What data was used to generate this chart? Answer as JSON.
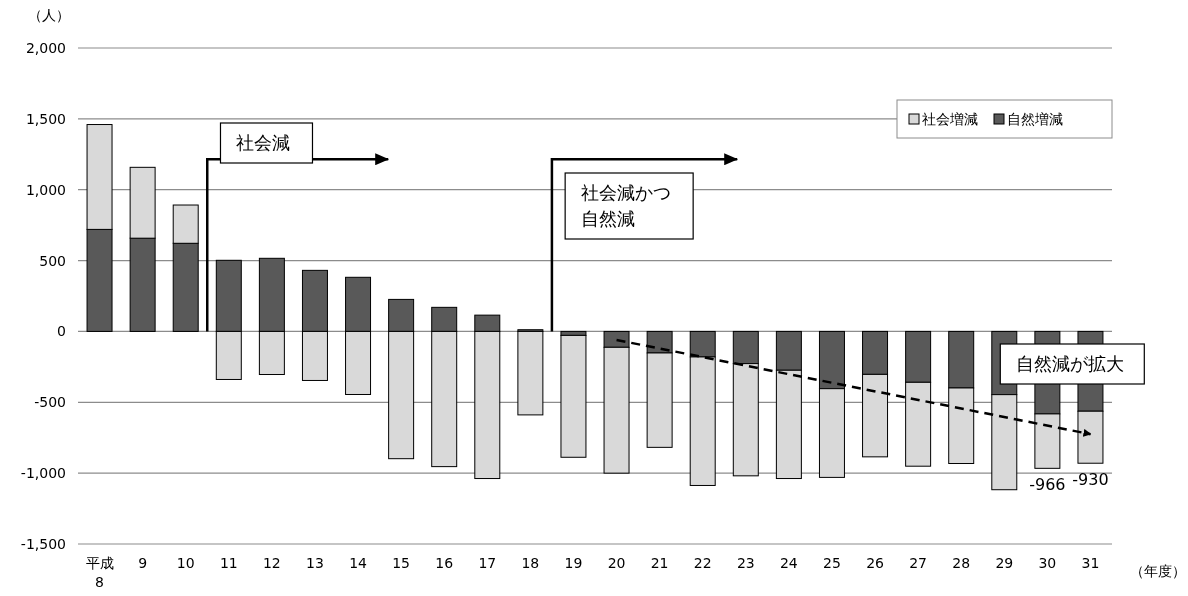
{
  "chart_data": {
    "type": "bar",
    "stacked": true,
    "ylabel": "（人）",
    "xlabel": "（年度）",
    "categories": [
      "平成\n8",
      "9",
      "10",
      "11",
      "12",
      "13",
      "14",
      "15",
      "16",
      "17",
      "18",
      "19",
      "20",
      "21",
      "22",
      "23",
      "24",
      "25",
      "26",
      "27",
      "28",
      "29",
      "30",
      "31"
    ],
    "series": [
      {
        "name": "自然増減",
        "color": "#595959",
        "values": [
          720,
          658,
          622,
          502,
          516,
          431,
          382,
          226,
          170,
          115,
          12,
          -28,
          -112,
          -152,
          -180,
          -227,
          -274,
          -404,
          -303,
          -359,
          -399,
          -446,
          -582,
          -563
        ]
      },
      {
        "name": "社会増減",
        "color": "#d9d9d9",
        "values": [
          740,
          500,
          270,
          -339,
          -304,
          -346,
          -445,
          -898,
          -954,
          -1038,
          -589,
          -860,
          -888,
          -666,
          -907,
          -792,
          -764,
          -626,
          -582,
          -592,
          -533,
          -671,
          -384,
          -367
        ]
      },
      {
        "type": "line",
        "color": "#000000",
        "line_style": "dashed",
        "x": [
          "20",
          "31"
        ],
        "values": [
          -60,
          -725
        ]
      }
    ],
    "totals": [
      null,
      null,
      null,
      null,
      null,
      null,
      null,
      null,
      null,
      null,
      null,
      null,
      null,
      null,
      null,
      null,
      null,
      null,
      null,
      null,
      null,
      null,
      "-966",
      "-930"
    ],
    "ylim": [
      -1500,
      2000
    ],
    "yticks": [
      {
        "value": 2000,
        "label": "2,000"
      },
      {
        "value": 1500,
        "label": "1,500"
      },
      {
        "value": 1000,
        "label": "1,000"
      },
      {
        "value": 500,
        "label": "500"
      },
      {
        "value": 0,
        "label": "0"
      },
      {
        "value": -500,
        "label": "-500"
      },
      {
        "value": -1000,
        "label": "-1,000"
      },
      {
        "value": -1500,
        "label": "-1,500"
      }
    ],
    "grid": "y",
    "legend": "top right",
    "annotations": [
      "社会減",
      "社会減かつ自然減",
      "自然減が拡大"
    ]
  }
}
